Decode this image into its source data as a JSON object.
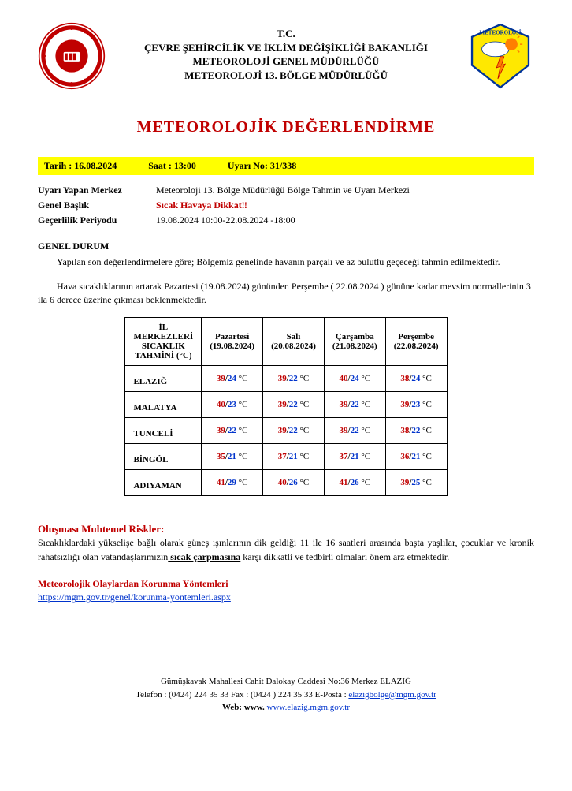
{
  "header": {
    "line1": "T.C.",
    "line2": "ÇEVRE ŞEHİRCİLİK VE İKLİM DEĞİŞİKLİĞİ BAKANLIĞI",
    "line3": "METEOROLOJİ GENEL MÜDÜRLÜĞÜ",
    "line4": "METEOROLOJİ 13. BÖLGE MÜDÜRLÜĞÜ",
    "logo_left_color_outer": "#c00000",
    "logo_left_color_inner": "#ffffff",
    "logo_right_bg": "#ffe800",
    "logo_right_border": "#003399",
    "logo_right_text": "METEOROLOJİ"
  },
  "title": "METEOROLOJİK DEĞERLENDİRME",
  "bar": {
    "tarih_label": "Tarih : 16.08.2024",
    "saat_label": "Saat : 13:00",
    "uyari_label": "Uyarı No: 31/338"
  },
  "info": {
    "merkez_label": "Uyarı Yapan Merkez",
    "merkez_value": "Meteoroloji 13. Bölge Müdürlüğü Bölge Tahmin ve Uyarı Merkezi",
    "baslik_label": "Genel Başlık",
    "baslik_value": "Sıcak Havaya  Dikkat‼",
    "periyot_label": "Geçerlilik Periyodu",
    "periyot_value": "19.08.2024 10:00-22.08.2024 -18:00"
  },
  "genel_head": "GENEL DURUM",
  "para1": "Yapılan son değerlendirmelere göre; Bölgemiz genelinde havanın parçalı ve az bulutlu geçeceği tahmin edilmektedir.",
  "para2": "Hava sıcaklıklarının artarak Pazartesi (19.08.2024) gününden Perşembe ( 22.08.2024 ) gününe kadar mevsim normallerinin 3 ila 6 derece üzerine çıkması beklenmektedir.",
  "table": {
    "col0_line1": "İL",
    "col0_line2": "MERKEZLERİ",
    "col0_line3": "SICAKLIK",
    "col0_line4": "TAHMİNİ (°C)",
    "days": [
      {
        "name": "Pazartesi",
        "date": "(19.08.2024)"
      },
      {
        "name": "Salı",
        "date": "(20.08.2024)"
      },
      {
        "name": "Çarşamba",
        "date": "(21.08.2024)"
      },
      {
        "name": "Perşembe",
        "date": "(22.08.2024)"
      }
    ],
    "unit": "°C",
    "rows": [
      {
        "city": "ELAZIĞ",
        "vals": [
          [
            "39",
            "24"
          ],
          [
            "39",
            "22"
          ],
          [
            "40",
            "24"
          ],
          [
            "38",
            "24"
          ]
        ]
      },
      {
        "city": "MALATYA",
        "vals": [
          [
            "40",
            "23"
          ],
          [
            "39",
            "22"
          ],
          [
            "39",
            "22"
          ],
          [
            "39",
            "23"
          ]
        ]
      },
      {
        "city": "TUNCELİ",
        "vals": [
          [
            "39",
            "22"
          ],
          [
            "39",
            "22"
          ],
          [
            "39",
            "22"
          ],
          [
            "38",
            "22"
          ]
        ]
      },
      {
        "city": "BİNGÖL",
        "vals": [
          [
            "35",
            "21"
          ],
          [
            "37",
            "21"
          ],
          [
            "37",
            "21"
          ],
          [
            "36",
            "21"
          ]
        ]
      },
      {
        "city": "ADIYAMAN",
        "vals": [
          [
            "41",
            "29"
          ],
          [
            "40",
            "26"
          ],
          [
            "41",
            "26"
          ],
          [
            "39",
            "25"
          ]
        ]
      }
    ]
  },
  "risks": {
    "head": "Oluşması Muhtemel Riskler:",
    "text_pre": "Sıcaklıklardaki yükselişe bağlı olarak güneş ışınlarının dik geldiği 11 ile 16 saatleri arasında başta yaşlılar, çocuklar ve kronik rahatsızlığı olan vatandaşlarımızın",
    "text_bold": " sıcak çarpmasına",
    "text_post": " karşı dikkatli  ve tedbirli olmaları önem arz etmektedir."
  },
  "protect": {
    "head": "Meteorolojik Olaylardan Korunma Yöntemleri",
    "link": "https://mgm.gov.tr/genel/korunma-yontemleri.aspx"
  },
  "footer": {
    "addr": "Gümüşkavak Mahallesi Cahit Dalokay  Caddesi No:36 Merkez ELAZIĞ",
    "tel_pre": "Telefon : (0424) 224 35 33 Fax : (0424 ) 224 35 33 E-Posta : ",
    "mail": "elazigbolge@mgm.gov.tr",
    "web_label": "Web: www.",
    "web_link": "www.elazig.mgm.gov.tr"
  },
  "colors": {
    "red": "#c00000",
    "blue": "#0033cc",
    "yellow": "#ffff00"
  }
}
